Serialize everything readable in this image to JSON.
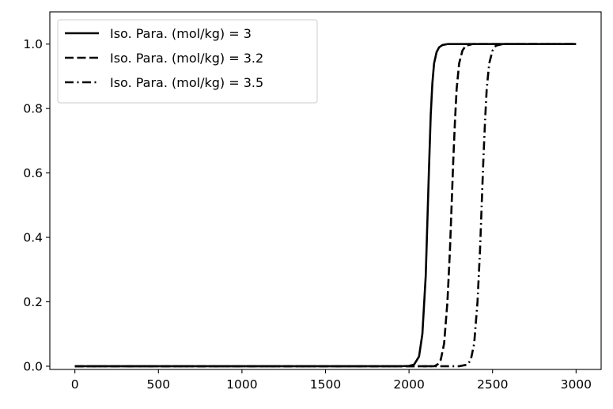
{
  "chart_data": {
    "type": "line",
    "title": "",
    "xlabel": "",
    "ylabel": "",
    "xlim": [
      -150,
      3150
    ],
    "ylim": [
      -0.01,
      1.1
    ],
    "x_ticks": [
      0,
      500,
      1000,
      1500,
      2000,
      2500,
      3000
    ],
    "x_tick_labels": [
      "0",
      "500",
      "1000",
      "1500",
      "2000",
      "2500",
      "3000"
    ],
    "y_ticks": [
      0.0,
      0.2,
      0.4,
      0.6,
      0.8,
      1.0
    ],
    "y_tick_labels": [
      "0.0",
      "0.2",
      "0.4",
      "0.6",
      "0.8",
      "1.0"
    ],
    "grid": false,
    "legend_position": "top-left",
    "line_color": "#000000",
    "series": [
      {
        "name": "Iso. Para. (mol/kg) = 3",
        "line_style": "solid",
        "x": [
          0,
          500,
          1000,
          1500,
          1950,
          2000,
          2030,
          2060,
          2080,
          2100,
          2110,
          2120,
          2130,
          2140,
          2150,
          2165,
          2180,
          2200,
          2230,
          2300,
          2500,
          3000
        ],
        "y": [
          0.0,
          0.0,
          0.0,
          0.0,
          0.0,
          0.001,
          0.005,
          0.03,
          0.1,
          0.28,
          0.45,
          0.62,
          0.78,
          0.88,
          0.94,
          0.975,
          0.99,
          0.997,
          1.0,
          1.0,
          1.0,
          1.0
        ]
      },
      {
        "name": "Iso. Para. (mol/kg) = 3.2",
        "line_style": "dashed",
        "x": [
          0,
          500,
          1000,
          1500,
          2000,
          2150,
          2170,
          2190,
          2210,
          2230,
          2245,
          2255,
          2265,
          2275,
          2285,
          2300,
          2320,
          2340,
          2380,
          2500,
          3000
        ],
        "y": [
          0.0,
          0.0,
          0.0,
          0.0,
          0.0,
          0.0,
          0.005,
          0.02,
          0.07,
          0.2,
          0.36,
          0.5,
          0.64,
          0.76,
          0.86,
          0.94,
          0.98,
          0.995,
          1.0,
          1.0,
          1.0
        ]
      },
      {
        "name": "Iso. Para. (mol/kg) = 3.5",
        "line_style": "dashdot",
        "x": [
          0,
          500,
          1000,
          1500,
          2000,
          2300,
          2350,
          2370,
          2390,
          2410,
          2425,
          2435,
          2445,
          2455,
          2465,
          2480,
          2500,
          2520,
          2560,
          2700,
          3000
        ],
        "y": [
          0.0,
          0.0,
          0.0,
          0.0,
          0.0,
          0.0,
          0.005,
          0.02,
          0.07,
          0.2,
          0.36,
          0.5,
          0.64,
          0.76,
          0.86,
          0.94,
          0.98,
          0.995,
          1.0,
          1.0,
          1.0
        ]
      }
    ]
  }
}
